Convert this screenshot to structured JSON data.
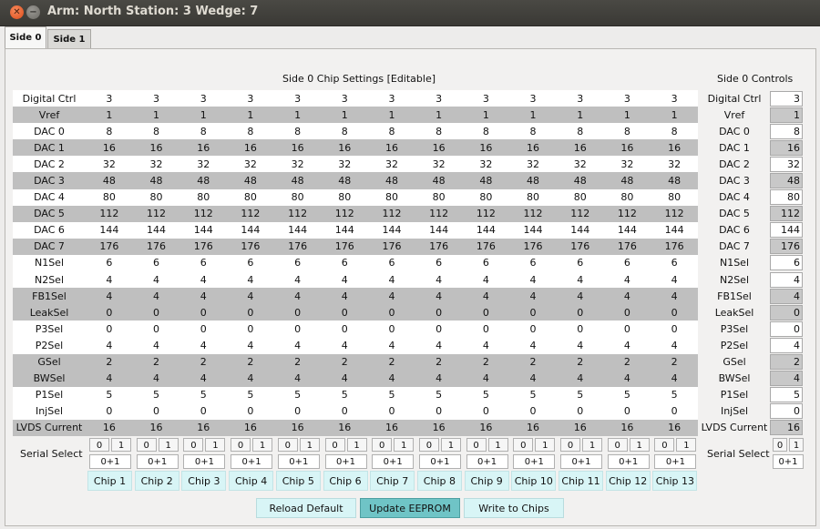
{
  "window": {
    "title": "Arm: North Station: 3 Wedge: 7"
  },
  "tabs": [
    "Side 0",
    "Side 1"
  ],
  "headers": {
    "settings": "Side 0 Chip Settings [Editable]",
    "controls": "Side 0 Controls"
  },
  "rows": [
    {
      "label": "Digital Ctrl",
      "value": "3"
    },
    {
      "label": "Vref",
      "value": "1"
    },
    {
      "label": "DAC 0",
      "value": "8"
    },
    {
      "label": "DAC 1",
      "value": "16"
    },
    {
      "label": "DAC 2",
      "value": "32"
    },
    {
      "label": "DAC 3",
      "value": "48"
    },
    {
      "label": "DAC 4",
      "value": "80"
    },
    {
      "label": "DAC 5",
      "value": "112"
    },
    {
      "label": "DAC 6",
      "value": "144"
    },
    {
      "label": "DAC 7",
      "value": "176"
    },
    {
      "label": "N1Sel",
      "value": "6"
    },
    {
      "label": "N2Sel",
      "value": "4"
    },
    {
      "label": "FB1Sel",
      "value": "4"
    },
    {
      "label": "LeakSel",
      "value": "0"
    },
    {
      "label": "P3Sel",
      "value": "0"
    },
    {
      "label": "P2Sel",
      "value": "4"
    },
    {
      "label": "GSel",
      "value": "2"
    },
    {
      "label": "BWSel",
      "value": "4"
    },
    {
      "label": "P1Sel",
      "value": "5"
    },
    {
      "label": "InjSel",
      "value": "0"
    },
    {
      "label": "LVDS Current",
      "value": "16"
    }
  ],
  "row_shading": [
    "white",
    "shade",
    "white",
    "shade",
    "white",
    "shade",
    "white",
    "shade",
    "white",
    "shade",
    "white",
    "white",
    "shade",
    "shade",
    "white",
    "white",
    "shade",
    "shade",
    "white",
    "white",
    "shade"
  ],
  "serial_select": {
    "label": "Serial Select",
    "bits": [
      "0",
      "1"
    ],
    "value": "0+1"
  },
  "chips": [
    "Chip 1",
    "Chip 2",
    "Chip 3",
    "Chip 4",
    "Chip 5",
    "Chip 6",
    "Chip 7",
    "Chip 8",
    "Chip 9",
    "Chip 10",
    "Chip 11",
    "Chip 12",
    "Chip 13"
  ],
  "actions": {
    "reload": "Reload Default",
    "update": "Update EEPROM",
    "write": "Write to Chips"
  }
}
